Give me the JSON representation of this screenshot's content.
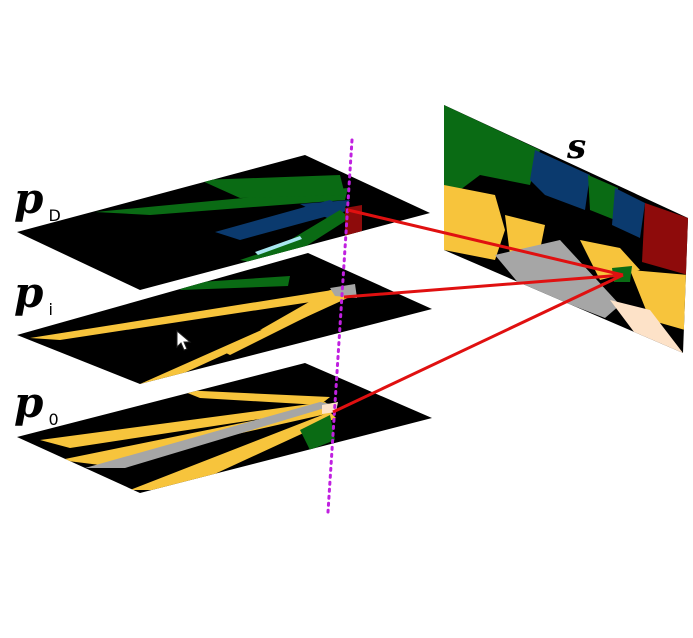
{
  "planes": [
    {
      "id": "D",
      "symbol": "p",
      "subscript": "D"
    },
    {
      "id": "i",
      "symbol": "p",
      "subscript": "i"
    },
    {
      "id": "0",
      "symbol": "p",
      "subscript": "0"
    }
  ],
  "image_label": "s",
  "colors": {
    "background": "#000000",
    "yellow": "#f7c43c",
    "green": "#0a6b14",
    "blue": "#0b3a6e",
    "red": "#8e0b0b",
    "gray": "#a6a6a6",
    "peach": "#fde2c8",
    "cyan": "#a8e6f0",
    "ray": "#e01010",
    "dotted_line": "#c020e0",
    "label": "#000000"
  },
  "icons": {
    "cursor": "mouse-pointer-icon"
  }
}
